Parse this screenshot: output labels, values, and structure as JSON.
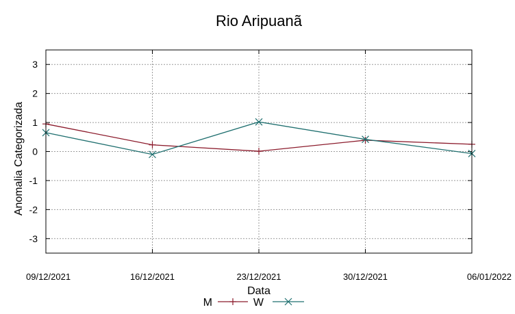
{
  "chart_data": {
    "type": "line",
    "title": "Rio Aripuanã",
    "xlabel": "Data",
    "ylabel": "Anomalia Categorizada",
    "categories": [
      "09/12/2021",
      "16/12/2021",
      "23/12/2021",
      "30/12/2021",
      "06/01/2022"
    ],
    "ylim": [
      -3.5,
      3.5
    ],
    "yticks": [
      3,
      2,
      1,
      0,
      -1,
      -2,
      -3
    ],
    "grid": true,
    "legend_position": "bottom",
    "series": [
      {
        "name": "M",
        "color": "#8b1a2b",
        "marker": "plus",
        "values": [
          0.95,
          0.23,
          0.01,
          0.39,
          0.25
        ]
      },
      {
        "name": "W",
        "color": "#1f6f6f",
        "marker": "cross",
        "values": [
          0.65,
          -0.1,
          1.02,
          0.42,
          -0.07
        ]
      }
    ]
  }
}
